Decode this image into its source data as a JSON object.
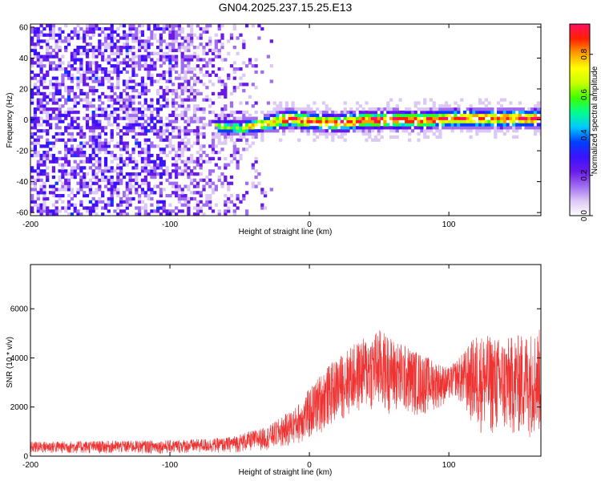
{
  "chart_data": [
    {
      "type": "heatmap",
      "title": "GN04.2025.237.15.25.E13",
      "xlabel": "Height of straight line (km)",
      "ylabel": "Frequency (Hz)",
      "xlim": [
        -200,
        166
      ],
      "ylim": [
        -62,
        62
      ],
      "xticks": [
        -200,
        -100,
        0,
        100
      ],
      "xtick_labels": [
        "-200",
        "-100",
        "0",
        "100"
      ],
      "yticks": [
        60,
        40,
        20,
        0,
        -20,
        -40,
        -60
      ],
      "ytick_labels": [
        "60",
        "40",
        "20",
        "0",
        "-20",
        "-40",
        "-60"
      ],
      "colorbar": {
        "label": "Normalized spectral amplitude",
        "range": [
          0,
          0.95
        ],
        "ticks": [
          0.0,
          0.2,
          0.4,
          0.6,
          0.8
        ],
        "tick_labels": [
          "0.0",
          "0.2",
          "0.4",
          "0.6",
          "0.8"
        ],
        "colors": [
          "#ffffff",
          "#dcc8f5",
          "#a06cf0",
          "#6a1ae8",
          "#3a12ff",
          "#0040ff",
          "#00c8ff",
          "#00ff90",
          "#40ff00",
          "#c8ff00",
          "#ffff00",
          "#ffa000",
          "#ff2000",
          "#ff1060"
        ]
      },
      "noise_region_x": [
        -200,
        -25
      ],
      "ridge": {
        "x_start": -70,
        "path": [
          [
            -70,
            -5
          ],
          [
            -50,
            -6
          ],
          [
            -30,
            -3
          ],
          [
            -15,
            0
          ],
          [
            0,
            -2
          ],
          [
            20,
            -3
          ],
          [
            40,
            -1
          ],
          [
            60,
            -1
          ],
          [
            80,
            -1
          ],
          [
            100,
            0
          ],
          [
            120,
            0
          ],
          [
            140,
            0
          ],
          [
            166,
            0
          ]
        ]
      },
      "grid": false
    },
    {
      "type": "line",
      "xlabel": "Height of straight line (km)",
      "ylabel": "SNR (10 * v/v)",
      "xlim": [
        -200,
        166
      ],
      "ylim": [
        0,
        7800
      ],
      "xticks": [
        -200,
        -100,
        0,
        100
      ],
      "xtick_labels": [
        "-200",
        "-100",
        "0",
        "100"
      ],
      "yticks": [
        0,
        2000,
        4000,
        6000
      ],
      "ytick_labels": [
        "0",
        "2000",
        "4000",
        "6000"
      ],
      "series_color": "#ee3333",
      "envelope": [
        [
          -200,
          600
        ],
        [
          -100,
          650
        ],
        [
          -60,
          750
        ],
        [
          -30,
          1200
        ],
        [
          -10,
          2000
        ],
        [
          10,
          3500
        ],
        [
          30,
          4500
        ],
        [
          50,
          5200
        ],
        [
          60,
          4800
        ],
        [
          80,
          4200
        ],
        [
          100,
          3600
        ],
        [
          110,
          4200
        ],
        [
          120,
          5000
        ],
        [
          140,
          4800
        ],
        [
          166,
          5200
        ]
      ],
      "floor": [
        [
          -200,
          100
        ],
        [
          -100,
          100
        ],
        [
          -50,
          150
        ],
        [
          -20,
          300
        ],
        [
          0,
          600
        ],
        [
          20,
          1400
        ],
        [
          40,
          1800
        ],
        [
          60,
          1700
        ],
        [
          80,
          1600
        ],
        [
          95,
          2000
        ],
        [
          105,
          2400
        ],
        [
          120,
          900
        ],
        [
          140,
          700
        ],
        [
          166,
          800
        ]
      ],
      "grid": false
    }
  ]
}
